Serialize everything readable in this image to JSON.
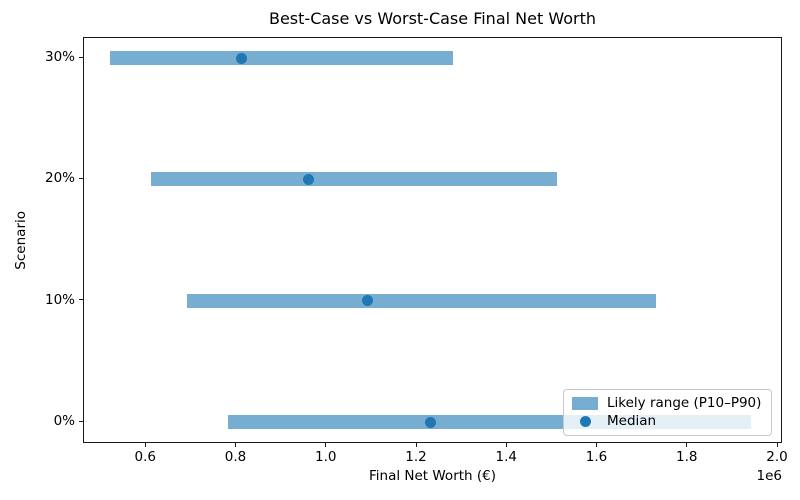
{
  "chart_data": {
    "type": "bar",
    "orientation": "horizontal",
    "title": "Best-Case vs Worst-Case Final Net Worth",
    "xlabel": "Final Net Worth (€)",
    "ylabel": "Scenario",
    "x_offset_label": "1e6",
    "grid": false,
    "xlim": [
      0.462,
      2.011
    ],
    "ylim": [
      -0.181,
      3.166
    ],
    "x_ticks": [
      "0.6",
      "0.8",
      "1.0",
      "1.2",
      "1.4",
      "1.6",
      "1.8",
      "2.0"
    ],
    "categories": [
      "0%",
      "10%",
      "20%",
      "30%"
    ],
    "rows": [
      {
        "scenario": "30%",
        "p10": 0.52,
        "median": 0.81,
        "p90": 1.28
      },
      {
        "scenario": "20%",
        "p10": 0.61,
        "median": 0.96,
        "p90": 1.51
      },
      {
        "scenario": "10%",
        "p10": 0.69,
        "median": 1.09,
        "p90": 1.73
      },
      {
        "scenario": "0%",
        "p10": 0.78,
        "median": 1.23,
        "p90": 1.94
      }
    ],
    "legend": {
      "position": "lower right",
      "items": [
        "Likely range (P10–P90)",
        "Median"
      ]
    },
    "colors": {
      "range_bar": "#78add2",
      "median_dot": "#1f77b4",
      "frame": "#1a1a1a",
      "legend_border": "#c8c8c8"
    }
  }
}
